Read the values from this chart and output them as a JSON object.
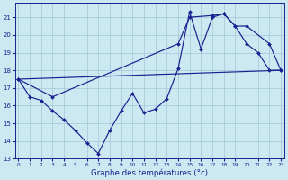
{
  "line1_x": [
    0,
    1,
    2,
    3,
    4,
    5,
    6,
    7,
    8,
    9,
    10,
    11,
    12,
    13,
    14,
    15,
    16,
    17,
    18,
    19,
    20,
    21,
    22,
    23
  ],
  "line1_y": [
    17.5,
    16.5,
    16.3,
    15.7,
    15.2,
    14.6,
    13.9,
    13.3,
    14.6,
    15.7,
    16.7,
    15.6,
    15.8,
    16.4,
    18.1,
    21.3,
    19.2,
    21.0,
    21.2,
    20.5,
    19.5,
    19.0,
    18.0,
    18.0
  ],
  "line2_x": [
    0,
    3,
    14,
    15,
    17,
    18,
    19,
    20,
    22,
    23
  ],
  "line2_y": [
    17.5,
    16.5,
    19.5,
    21.0,
    21.1,
    21.2,
    20.5,
    20.5,
    19.5,
    18.0
  ],
  "line3_x": [
    0,
    23
  ],
  "line3_y": [
    17.5,
    18.0
  ],
  "xlabel": "Graphe des températures (°c)",
  "ylim": [
    13,
    21.8
  ],
  "xlim": [
    -0.3,
    23.3
  ],
  "yticks": [
    13,
    14,
    15,
    16,
    17,
    18,
    19,
    20,
    21
  ],
  "xticks": [
    0,
    1,
    2,
    3,
    4,
    5,
    6,
    7,
    8,
    9,
    10,
    11,
    12,
    13,
    14,
    15,
    16,
    17,
    18,
    19,
    20,
    21,
    22,
    23
  ],
  "bg_color": "#cce8f0",
  "line_color": "#1a2090",
  "grid_color": "#a0c8d8"
}
